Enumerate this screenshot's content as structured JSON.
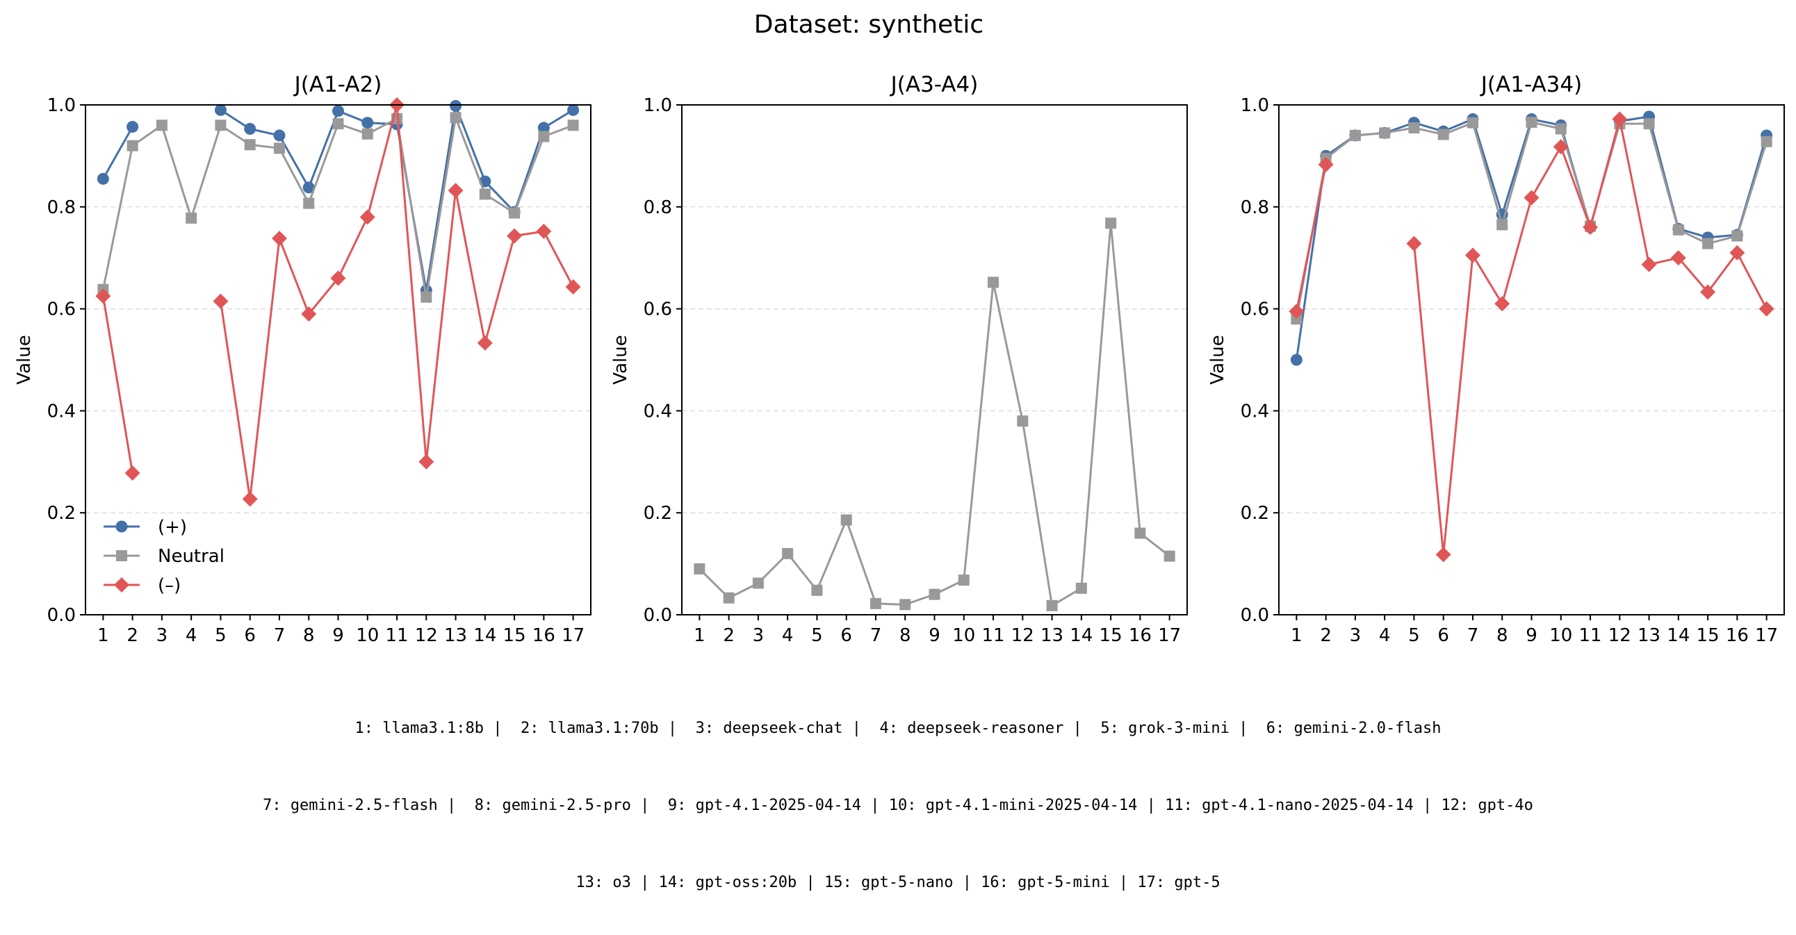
{
  "figure": {
    "suptitle": "Dataset: synthetic",
    "footer_lines": [
      "1: llama3.1:8b |  2: llama3.1:70b |  3: deepseek-chat |  4: deepseek-reasoner |  5: grok-3-mini |  6: gemini-2.0-flash",
      "7: gemini-2.5-flash |  8: gemini-2.5-pro |  9: gpt-4.1-2025-04-14 | 10: gpt-4.1-mini-2025-04-14 | 11: gpt-4.1-nano-2025-04-14 | 12: gpt-4o",
      "13: o3 | 14: gpt-oss:20b | 15: gpt-5-nano | 16: gpt-5-mini | 17: gpt-5"
    ]
  },
  "colors": {
    "positive": "#4470a8",
    "neutral": "#999999",
    "negative": "#e05656"
  },
  "chart_data": [
    {
      "type": "line",
      "title": "J(A1-A2)",
      "xlabel": "",
      "ylabel": "Value",
      "x": [
        1,
        2,
        3,
        4,
        5,
        6,
        7,
        8,
        9,
        10,
        11,
        12,
        13,
        14,
        15,
        16,
        17
      ],
      "ylim": [
        0,
        1
      ],
      "yticks": [
        "0.0",
        "0.2",
        "0.4",
        "0.6",
        "0.8",
        "1.0"
      ],
      "grid": "horizontal dashed",
      "legend": {
        "placement": "lower-left",
        "entries": [
          "(+)",
          "Neutral",
          "(–)"
        ]
      },
      "series": [
        {
          "name": "(+)",
          "key": "positive",
          "marker": "circle",
          "values": [
            0.855,
            0.957,
            null,
            null,
            0.99,
            0.953,
            0.94,
            0.838,
            0.988,
            0.965,
            0.962,
            0.636,
            0.998,
            0.85,
            0.79,
            0.955,
            0.99
          ]
        },
        {
          "name": "Neutral",
          "key": "neutral",
          "marker": "square",
          "values": [
            0.638,
            0.92,
            0.96,
            0.778,
            0.96,
            0.922,
            0.915,
            0.807,
            0.963,
            0.943,
            0.973,
            0.623,
            0.975,
            0.825,
            0.788,
            0.938,
            0.96
          ]
        },
        {
          "name": "(–)",
          "key": "negative",
          "marker": "diamond",
          "values": [
            0.625,
            0.278,
            null,
            null,
            0.615,
            0.227,
            0.738,
            0.59,
            0.66,
            0.78,
            1.0,
            0.3,
            0.832,
            0.533,
            0.743,
            0.752,
            0.643
          ]
        }
      ]
    },
    {
      "type": "line",
      "title": "J(A3-A4)",
      "xlabel": "",
      "ylabel": "Value",
      "x": [
        1,
        2,
        3,
        4,
        5,
        6,
        7,
        8,
        9,
        10,
        11,
        12,
        13,
        14,
        15,
        16,
        17
      ],
      "ylim": [
        0,
        1
      ],
      "yticks": [
        "0.0",
        "0.2",
        "0.4",
        "0.6",
        "0.8",
        "1.0"
      ],
      "grid": "horizontal dashed",
      "series": [
        {
          "name": "Neutral",
          "key": "neutral",
          "marker": "square",
          "values": [
            0.09,
            0.033,
            0.062,
            0.12,
            0.048,
            0.186,
            0.022,
            0.02,
            0.04,
            0.068,
            0.652,
            0.38,
            0.018,
            0.052,
            0.768,
            0.16,
            0.115
          ]
        }
      ]
    },
    {
      "type": "line",
      "title": "J(A1-A34)",
      "xlabel": "",
      "ylabel": "Value",
      "x": [
        1,
        2,
        3,
        4,
        5,
        6,
        7,
        8,
        9,
        10,
        11,
        12,
        13,
        14,
        15,
        16,
        17
      ],
      "ylim": [
        0,
        1
      ],
      "yticks": [
        "0.0",
        "0.2",
        "0.4",
        "0.6",
        "0.8",
        "1.0"
      ],
      "grid": "horizontal dashed",
      "series": [
        {
          "name": "(+)",
          "key": "positive",
          "marker": "circle",
          "values": [
            0.5,
            0.9,
            0.94,
            0.945,
            0.965,
            0.948,
            0.972,
            0.785,
            0.972,
            0.96,
            0.76,
            0.968,
            0.977,
            0.757,
            0.74,
            0.745,
            0.94
          ]
        },
        {
          "name": "Neutral",
          "key": "neutral",
          "marker": "square",
          "values": [
            0.58,
            0.895,
            0.94,
            0.945,
            0.955,
            0.942,
            0.965,
            0.765,
            0.966,
            0.953,
            0.762,
            0.963,
            0.963,
            0.755,
            0.728,
            0.743,
            0.928
          ]
        },
        {
          "name": "(–)",
          "key": "negative",
          "marker": "diamond",
          "values": [
            0.595,
            0.883,
            null,
            null,
            0.728,
            0.118,
            0.705,
            0.61,
            0.818,
            0.918,
            0.76,
            0.972,
            0.687,
            0.7,
            0.633,
            0.71,
            0.6
          ]
        }
      ]
    }
  ]
}
